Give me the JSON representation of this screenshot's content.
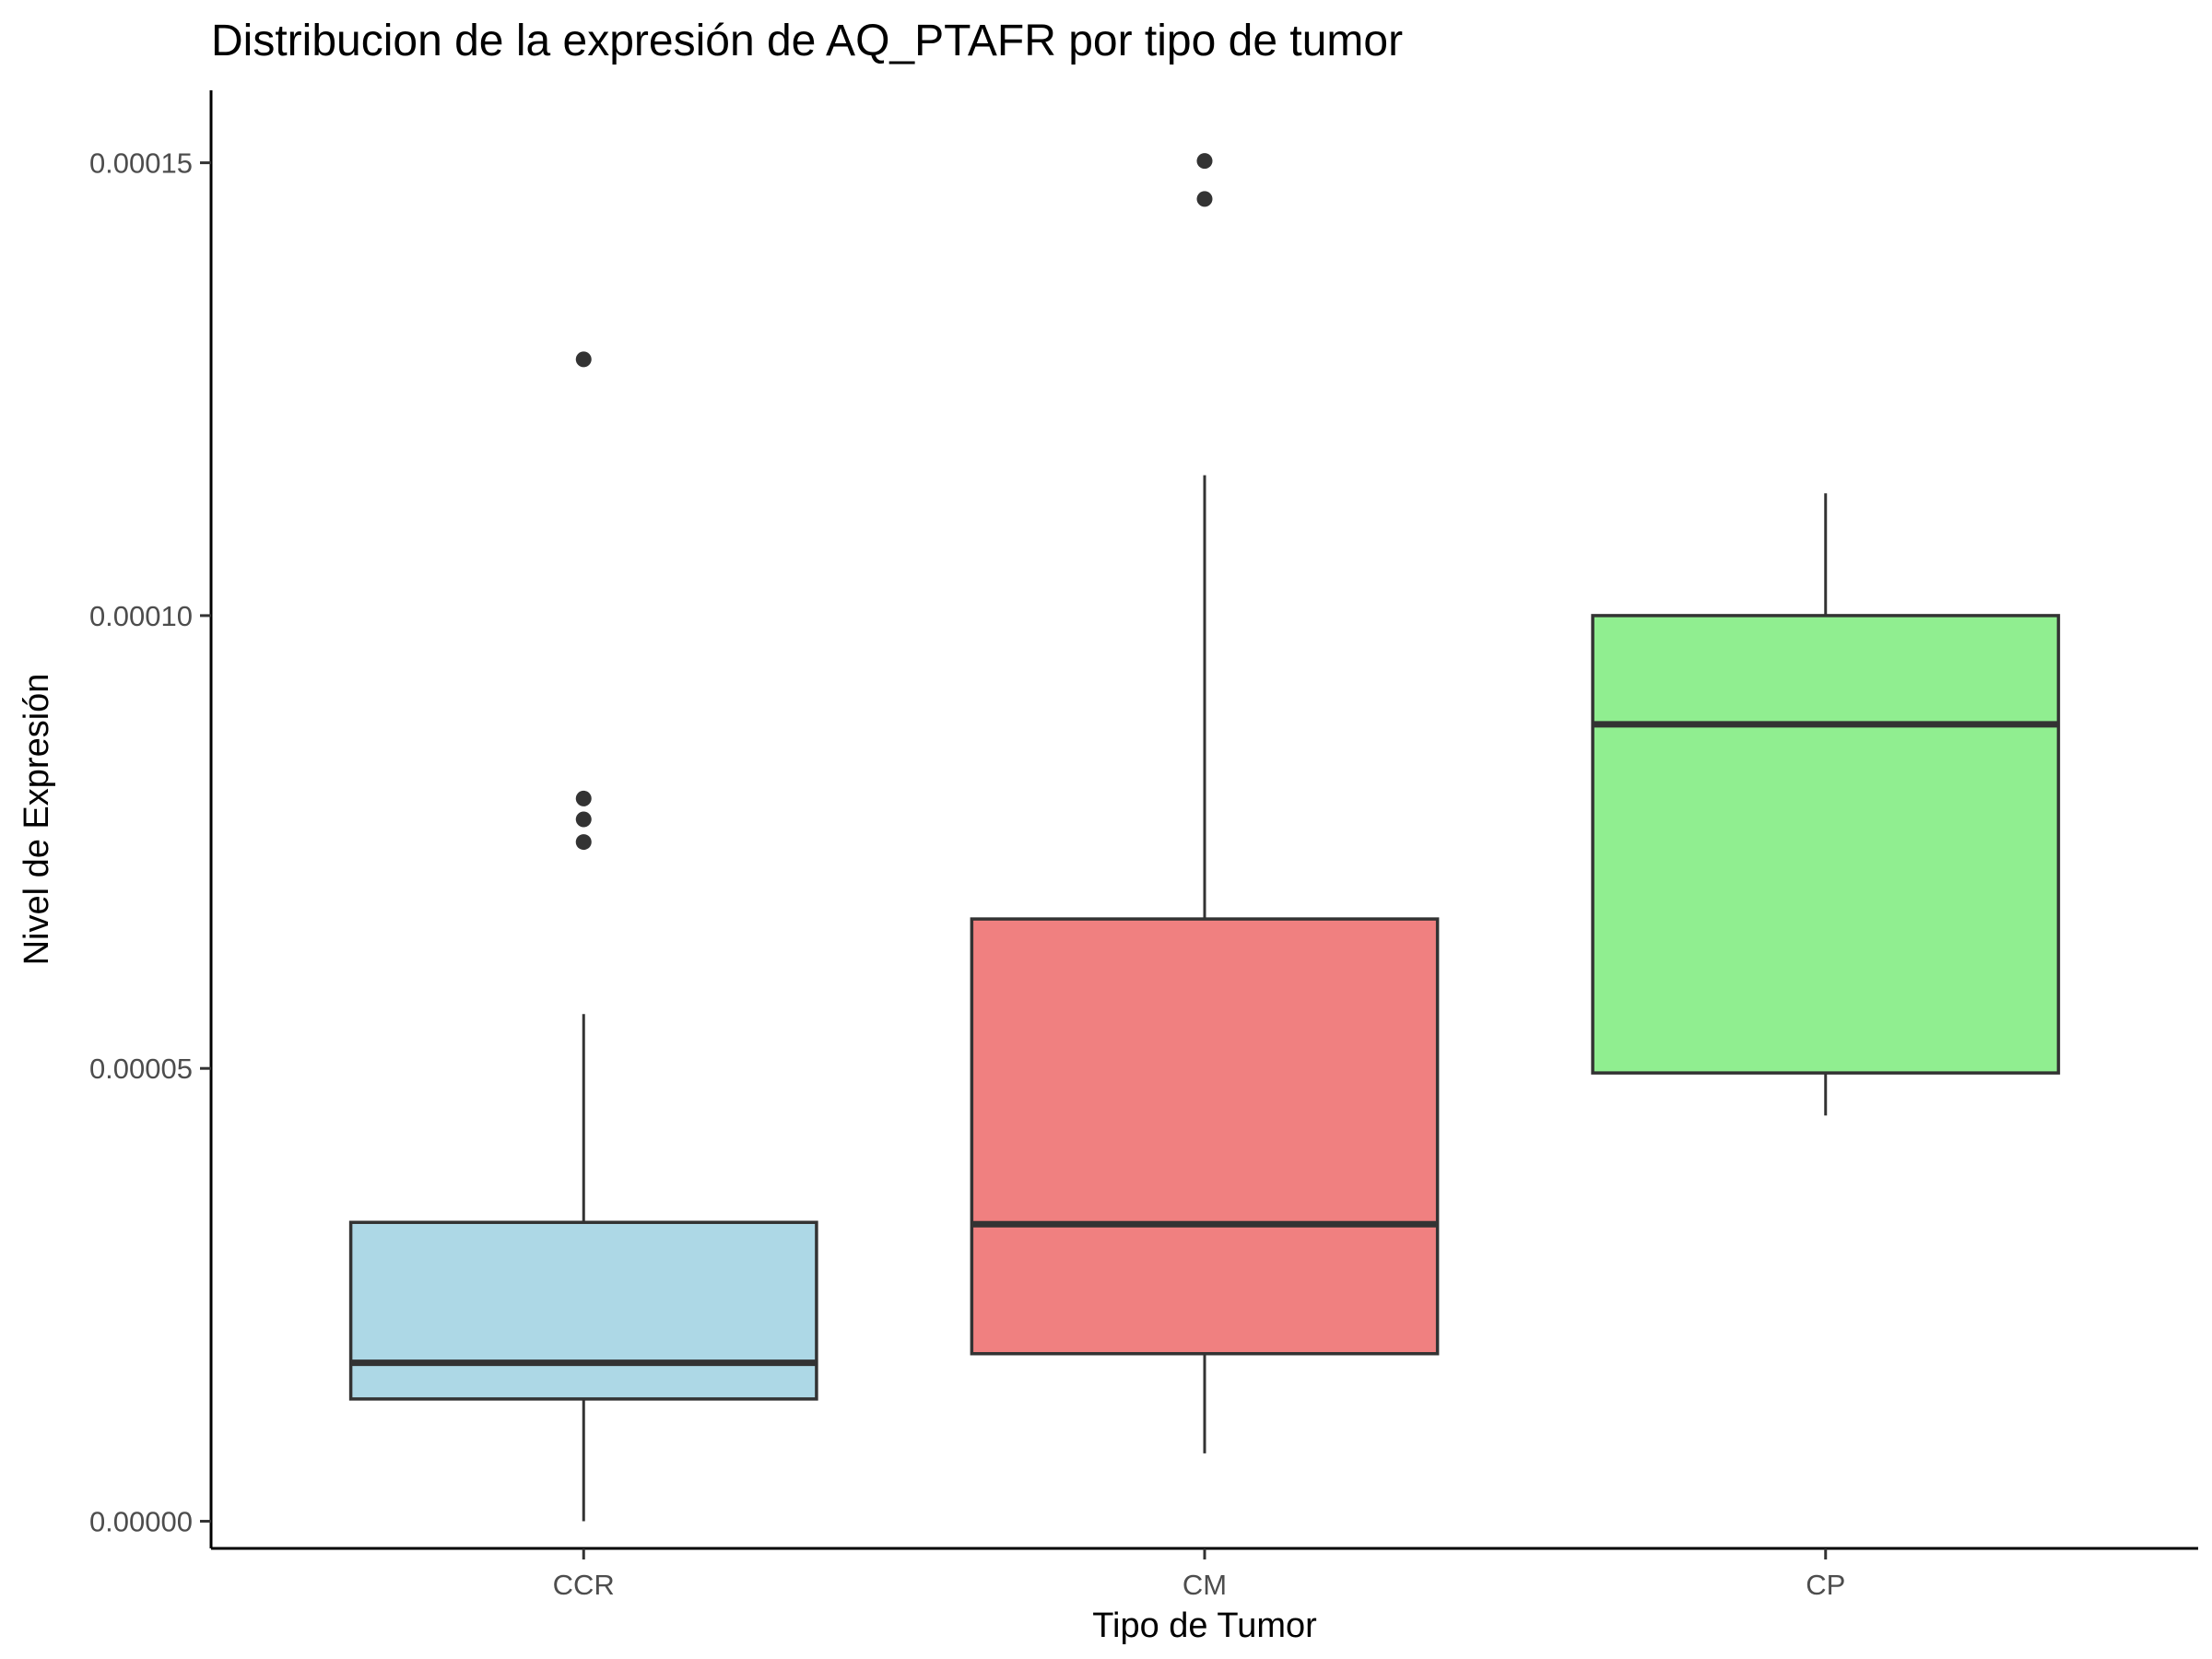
{
  "chart_data": {
    "type": "boxplot",
    "title": "Distribucion de la expresión de AQ_PTAFR por tipo de tumor",
    "xlabel": "Tipo de Tumor",
    "ylabel": "Nivel de Expresión",
    "ylim": [
      -3e-06,
      0.000158
    ],
    "y_ticks": [
      0,
      5e-05,
      0.0001,
      0.00015
    ],
    "y_tick_labels": [
      "0.00000",
      "0.00005",
      "0.00010",
      "0.00015"
    ],
    "grid": false,
    "legend": "none",
    "categories": [
      "CCR",
      "CM",
      "CP"
    ],
    "boxes": [
      {
        "category": "CCR",
        "color": "#add8e6",
        "whisker_low": 0.0,
        "q1": 1.35e-05,
        "median": 1.75e-05,
        "q3": 3.3e-05,
        "whisker_high": 5.6e-05,
        "outliers": [
          7.5e-05,
          7.75e-05,
          7.98e-05,
          0.0001283
        ]
      },
      {
        "category": "CM",
        "color": "#f08080",
        "whisker_low": 7.5e-06,
        "q1": 1.85e-05,
        "median": 3.28e-05,
        "q3": 6.65e-05,
        "whisker_high": 0.0001155,
        "outliers": [
          0.000146,
          0.0001502
        ]
      },
      {
        "category": "CP",
        "color": "#90ee90",
        "whisker_low": 4.48e-05,
        "q1": 4.95e-05,
        "median": 8.8e-05,
        "q3": 0.0001,
        "whisker_high": 0.0001135,
        "outliers": []
      }
    ]
  }
}
